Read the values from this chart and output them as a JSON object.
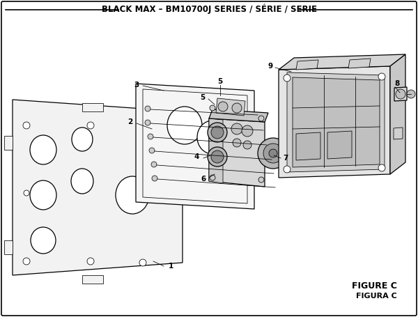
{
  "title": "BLACK MAX – BM10700J SERIES / SÉRIE / SERIE",
  "figure_label": "FIGURE C",
  "figura_label": "FIGURA C",
  "bg_color": "#ffffff",
  "text_color": "#000000",
  "title_fontsize": 8.5,
  "figsize": [
    6.0,
    4.55
  ],
  "dpi": 100,
  "lw_main": 0.9,
  "lw_thin": 0.55,
  "lw_border": 1.2
}
